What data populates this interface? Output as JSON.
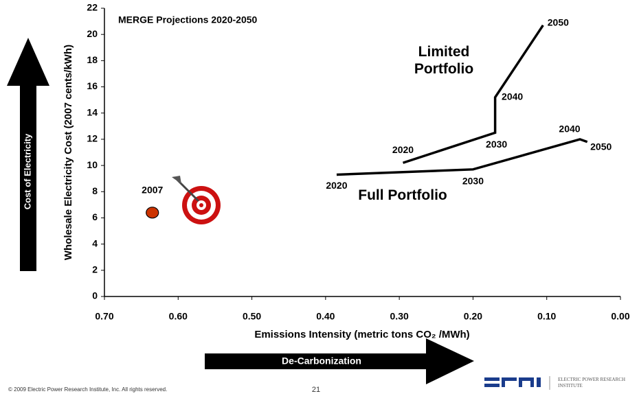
{
  "chart_data": {
    "type": "line",
    "title": "MERGE Projections 2020-2050",
    "x_label": "Emissions Intensity (metric tons CO₂ /MWh)",
    "y_label": "Wholesale Electricity Cost (2007 cents/kWh)",
    "xlim": [
      0.7,
      0.0
    ],
    "xticks": [
      {
        "value": 0.7,
        "label": "0.70"
      },
      {
        "value": 0.6,
        "label": "0.60"
      },
      {
        "value": 0.5,
        "label": "0.50"
      },
      {
        "value": 0.4,
        "label": "0.40"
      },
      {
        "value": 0.3,
        "label": "0.30"
      },
      {
        "value": 0.2,
        "label": "0.20"
      },
      {
        "value": 0.1,
        "label": "0.10"
      },
      {
        "value": 0.0,
        "label": "0.00"
      }
    ],
    "ylim": [
      0,
      22
    ],
    "yticks": [
      0,
      2,
      4,
      6,
      8,
      10,
      12,
      14,
      16,
      18,
      20,
      22
    ],
    "series": [
      {
        "name": "Limited Portfolio",
        "color": "#000000",
        "x": [
          0.295,
          0.17,
          0.17,
          0.105
        ],
        "values": [
          10.2,
          12.5,
          15.2,
          20.7
        ],
        "point_labels": [
          "2020",
          "2030",
          "2040",
          "2050"
        ]
      },
      {
        "name": "Full Portfolio",
        "color": "#000000",
        "x": [
          0.385,
          0.2,
          0.055,
          0.045
        ],
        "values": [
          9.3,
          9.7,
          12.0,
          11.8
        ],
        "point_labels": [
          "2020",
          "2030",
          "2040",
          "2050"
        ]
      }
    ],
    "points": [
      {
        "label": "2007",
        "x": 0.635,
        "y": 6.4,
        "color": "#cc3300"
      }
    ]
  },
  "slide": {
    "up_arrow_label": "Cost of Electricity",
    "right_arrow_label": "De-Carbonization",
    "footer": "© 2009 Electric Power Research Institute, Inc. All rights reserved.",
    "page": "21",
    "logo_text": "ELECTRIC POWER RESEARCH INSTITUTE"
  }
}
